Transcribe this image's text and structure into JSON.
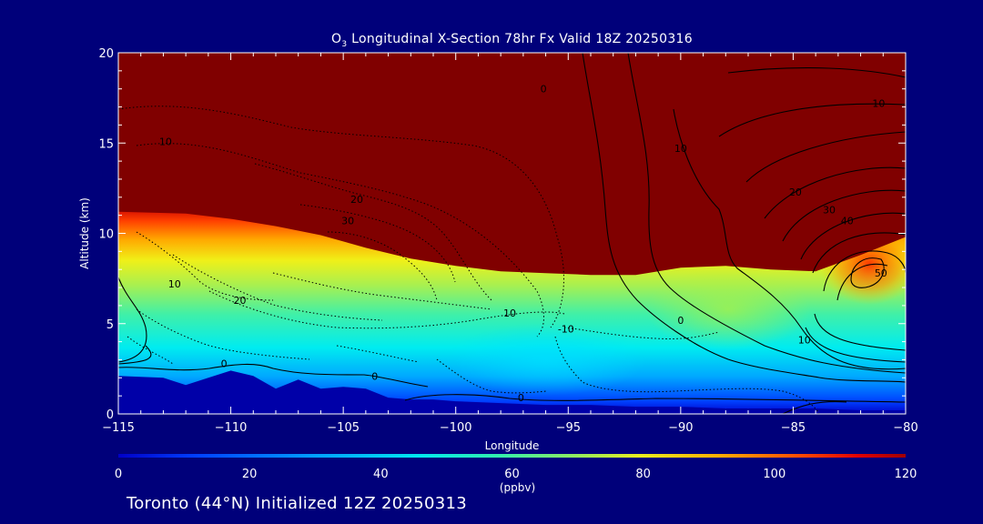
{
  "title": {
    "species_main": "O",
    "species_sub": "3",
    "text": "Longitudinal X-Section 78hr  Fx Valid 18Z 20250316"
  },
  "caption": {
    "location": "Toronto (44°N)",
    "init": "Initialized 12Z 20250313"
  },
  "colors": {
    "background": "#00007a",
    "axes": "#ffffff",
    "terrain": "#0000a8",
    "contour": "#000000",
    "colorbar_stops": [
      "#0000c8",
      "#0040ff",
      "#00a0ff",
      "#00e8f0",
      "#30f0b0",
      "#90f060",
      "#e8f020",
      "#ffb000",
      "#ff5000",
      "#e00000",
      "#800000"
    ]
  },
  "chart_data": {
    "type": "heatmap",
    "title": "O3 Longitudinal X-Section 78hr  Fx Valid 18Z 20250316",
    "xlabel": "Longitude",
    "ylabel": "Altitude (km)",
    "xlim": [
      -115,
      -80
    ],
    "ylim": [
      0,
      20
    ],
    "x_ticks": [
      -115,
      -110,
      -105,
      -100,
      -95,
      -90,
      -85,
      -80
    ],
    "y_ticks": [
      0,
      5,
      10,
      15,
      20
    ],
    "colorbar": {
      "label": "(ppbv)",
      "range": [
        0,
        120
      ],
      "ticks": [
        0,
        20,
        40,
        60,
        80,
        100,
        120
      ]
    },
    "ozone_top_altitude_km": {
      "lon": [
        -115,
        -112,
        -110,
        -108,
        -106,
        -104,
        -102,
        -100,
        -98,
        -96,
        -94,
        -92,
        -90,
        -88,
        -86,
        -84,
        -82,
        -80
      ],
      "values": [
        11.2,
        11.1,
        10.8,
        10.4,
        9.9,
        9.2,
        8.6,
        8.2,
        7.9,
        7.8,
        7.7,
        7.7,
        8.1,
        8.2,
        8.0,
        7.9,
        8.8,
        9.8
      ]
    },
    "terrain_altitude_km": {
      "lon": [
        -115,
        -113,
        -112,
        -111,
        -110,
        -109,
        -108,
        -107,
        -106,
        -105,
        -104,
        -103,
        -102,
        -101,
        -100,
        -98,
        -96,
        -94,
        -92,
        -90,
        -88,
        -86,
        -84,
        -82,
        -80
      ],
      "values": [
        2.1,
        2.0,
        1.6,
        2.0,
        2.4,
        2.1,
        1.4,
        1.9,
        1.4,
        1.5,
        1.4,
        0.9,
        0.8,
        0.8,
        0.7,
        0.6,
        0.5,
        0.5,
        0.4,
        0.4,
        0.3,
        0.3,
        0.3,
        0.2,
        0.2
      ]
    },
    "contour_labels": [
      {
        "lon": -96.1,
        "alt": 18.0,
        "text": "0"
      },
      {
        "lon": -81.2,
        "alt": 17.2,
        "text": "10"
      },
      {
        "lon": -90.0,
        "alt": 14.7,
        "text": "10"
      },
      {
        "lon": -112.9,
        "alt": 15.1,
        "text": "10"
      },
      {
        "lon": -84.9,
        "alt": 12.3,
        "text": "20"
      },
      {
        "lon": -83.4,
        "alt": 11.3,
        "text": "30"
      },
      {
        "lon": -82.6,
        "alt": 10.7,
        "text": "40"
      },
      {
        "lon": -81.1,
        "alt": 7.8,
        "text": "50"
      },
      {
        "lon": -104.4,
        "alt": 11.9,
        "text": "20"
      },
      {
        "lon": -104.8,
        "alt": 10.7,
        "text": "30"
      },
      {
        "lon": -112.5,
        "alt": 7.2,
        "text": "10"
      },
      {
        "lon": -109.6,
        "alt": 6.3,
        "text": "20"
      },
      {
        "lon": -97.6,
        "alt": 5.6,
        "text": "10"
      },
      {
        "lon": -95.1,
        "alt": 4.7,
        "text": "-10"
      },
      {
        "lon": -90.0,
        "alt": 5.2,
        "text": "0"
      },
      {
        "lon": -84.5,
        "alt": 4.1,
        "text": "10"
      },
      {
        "lon": -110.3,
        "alt": 2.8,
        "text": "0"
      },
      {
        "lon": -103.6,
        "alt": 2.1,
        "text": "0"
      },
      {
        "lon": -97.1,
        "alt": 0.9,
        "text": "0"
      }
    ]
  }
}
